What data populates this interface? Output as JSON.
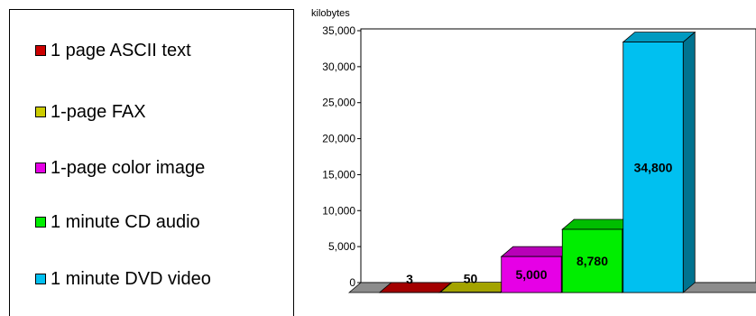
{
  "chart_data": {
    "type": "bar",
    "style": "3d",
    "ylabel": "kilobytes",
    "ylim": [
      0,
      35000
    ],
    "yticks": [
      0,
      5000,
      10000,
      15000,
      20000,
      25000,
      30000,
      35000
    ],
    "ytick_labels": [
      "0",
      "5,000",
      "10,000",
      "15,000",
      "20,000",
      "25,000",
      "30,000",
      "35,000"
    ],
    "grid": false,
    "legend_position": "left",
    "categories": [
      "1 page ASCII text",
      "1-page FAX",
      "1-page color image",
      "1 minute CD audio",
      "1 minute DVD video"
    ],
    "values": [
      3,
      50,
      5000,
      8780,
      34800
    ],
    "data_labels": [
      "3",
      "50",
      "5,000",
      "8,780",
      "34,800"
    ],
    "colors": [
      "#cc0000",
      "#cccc00",
      "#e600e6",
      "#00ee00",
      "#00c0f0"
    ],
    "floor_color": "#8c8c8c"
  }
}
